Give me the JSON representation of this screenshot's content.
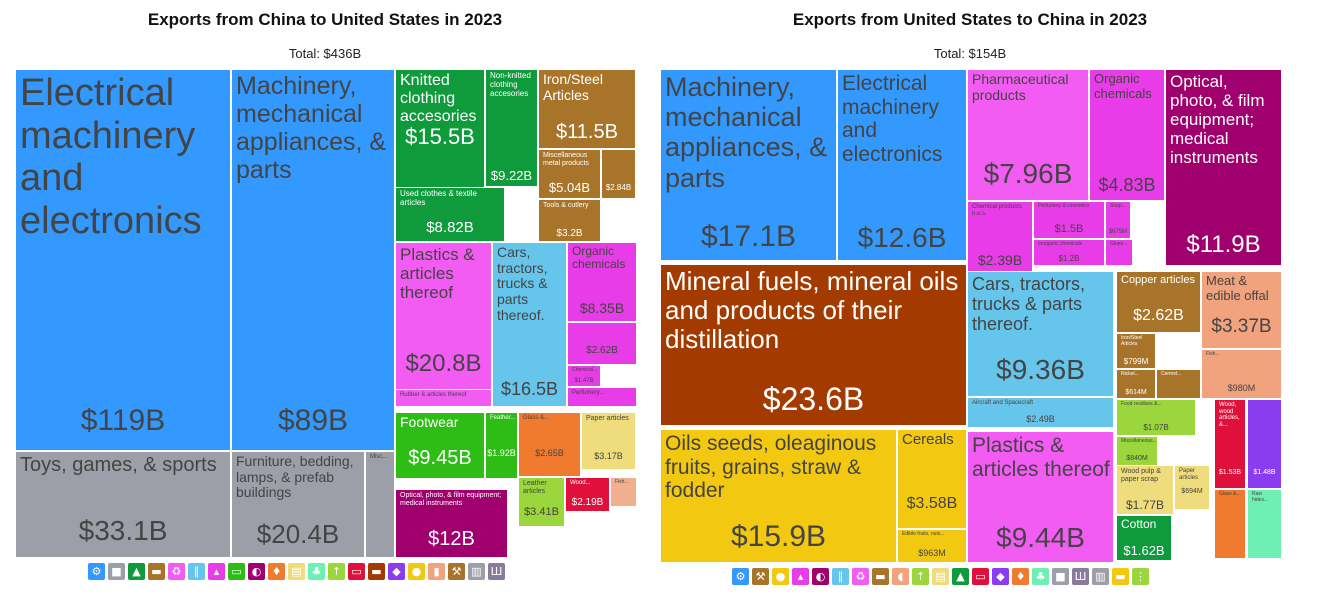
{
  "chart_data": [
    {
      "type": "treemap",
      "title": "Exports from China to United States in 2023",
      "subtitle": "Total: $436B",
      "tiles": [
        {
          "label": "Electrical machinery and electronics",
          "value": "$119B",
          "color": "#3399ff"
        },
        {
          "label": "Machinery, mechanical appliances, & parts",
          "value": "$89B",
          "color": "#3399ff"
        },
        {
          "label": "Toys, games, & sports",
          "value": "$33.1B",
          "color": "#9c9fa8"
        },
        {
          "label": "Furniture, bedding, lamps, & prefab buildings",
          "value": "$20.4B",
          "color": "#9c9fa8"
        },
        {
          "label": "Misc...",
          "value": "",
          "color": "#9c9fa8"
        },
        {
          "label": "Knitted clothing accesories",
          "value": "$15.5B",
          "color": "#0f9b3c"
        },
        {
          "label": "Non-knitted clothing accesories",
          "value": "$9.22B",
          "color": "#0f9b3c"
        },
        {
          "label": "Used clothes & textile articles",
          "value": "$8.82B",
          "color": "#0f9b3c"
        },
        {
          "label": "Iron/Steel Articles",
          "value": "$11.5B",
          "color": "#a8742a"
        },
        {
          "label": "Miscellaneous metal products",
          "value": "$5.04B",
          "color": "#a8742a"
        },
        {
          "label": "",
          "value": "$2.84B",
          "color": "#a8742a"
        },
        {
          "label": "Tools & cutlery",
          "value": "$3.2B",
          "color": "#a8742a"
        },
        {
          "label": "Plastics & articles thereof",
          "value": "$20.8B",
          "color": "#f25cf2"
        },
        {
          "label": "Rubber & articles thereof",
          "value": "",
          "color": "#f25cf2"
        },
        {
          "label": "Cars, tractors, trucks & parts thereof.",
          "value": "$16.5B",
          "color": "#66c5eb"
        },
        {
          "label": "Organic chemicals",
          "value": "$8.35B",
          "color": "#e83ce8"
        },
        {
          "label": "",
          "value": "$2.62B",
          "color": "#e83ce8"
        },
        {
          "label": "Chemical...",
          "value": "$1.47B",
          "color": "#e83ce8"
        },
        {
          "label": "Perfumery...",
          "value": "",
          "color": "#e83ce8"
        },
        {
          "label": "Footwear",
          "value": "$9.45B",
          "color": "#2dbd14"
        },
        {
          "label": "Feather...",
          "value": "$1.92B",
          "color": "#2dbd14"
        },
        {
          "label": "Glass &...",
          "value": "$2.65B",
          "color": "#f07a2e"
        },
        {
          "label": "Paper articles",
          "value": "$3.17B",
          "color": "#efdc7c"
        },
        {
          "label": "Leather articles",
          "value": "$3.41B",
          "color": "#9ad63c"
        },
        {
          "label": "Wood...",
          "value": "$2.19B",
          "color": "#e0103d"
        },
        {
          "label": "Fish...",
          "value": "",
          "color": "#efb08d"
        },
        {
          "label": "Optical, photo, & film equipment; medical instruments",
          "value": "$12B",
          "color": "#a0006e"
        }
      ],
      "legend_icons": [
        "gear-icon",
        "cube-icon",
        "shirt-icon",
        "anvil-icon",
        "recycle-icon",
        "road-icon",
        "flask-icon",
        "car-icon",
        "gauge-icon",
        "fire-icon",
        "paper-icon",
        "leaf-icon",
        "wheat-icon",
        "bill-icon",
        "shoe-icon",
        "diamond-icon",
        "fruit-icon",
        "bottle-icon",
        "hammer-icon",
        "furniture-icon",
        "bench-icon"
      ]
    },
    {
      "type": "treemap",
      "title": "Exports from United States to China in 2023",
      "subtitle": "Total: $154B",
      "tiles": [
        {
          "label": "Machinery, mechanical appliances, & parts",
          "value": "$17.1B",
          "color": "#3399ff"
        },
        {
          "label": "Electrical machinery and electronics",
          "value": "$12.6B",
          "color": "#3399ff"
        },
        {
          "label": "Mineral fuels, mineral oils and products of their distillation",
          "value": "$23.6B",
          "color": "#a33a00"
        },
        {
          "label": "Oils seeds, oleaginous fruits, grains, straw & fodder",
          "value": "$15.9B",
          "color": "#f2c811"
        },
        {
          "label": "Cereals",
          "value": "$3.58B",
          "color": "#f2c811"
        },
        {
          "label": "Edible fruits, nuts...",
          "value": "$963M",
          "color": "#f2c811"
        },
        {
          "label": "Pharmaceutical products",
          "value": "$7.96B",
          "color": "#f25cf2"
        },
        {
          "label": "Organic chemicals",
          "value": "$4.83B",
          "color": "#e83ce8"
        },
        {
          "label": "Chemical products n.e.s.",
          "value": "$2.39B",
          "color": "#e83ce8"
        },
        {
          "label": "Perfumery & cosmetics",
          "value": "$1.5B",
          "color": "#e83ce8"
        },
        {
          "label": "Soap...",
          "value": "$675M",
          "color": "#e83ce8"
        },
        {
          "label": "Inorganic chemicals",
          "value": "$1.2B",
          "color": "#e83ce8"
        },
        {
          "label": "Glues...",
          "value": "",
          "color": "#e83ce8"
        },
        {
          "label": "Optical, photo, & film equipment; medical instruments",
          "value": "$11.9B",
          "color": "#a0006e"
        },
        {
          "label": "Cars, tractors, trucks & parts thereof.",
          "value": "$9.36B",
          "color": "#66c5eb"
        },
        {
          "label": "Aircraft and Spacecraft",
          "value": "$2.49B",
          "color": "#66c5eb"
        },
        {
          "label": "Plastics & articles thereof",
          "value": "$9.44B",
          "color": "#f25cf2"
        },
        {
          "label": "Copper articles",
          "value": "$2.62B",
          "color": "#a8742a"
        },
        {
          "label": "Iron/Steel Articles",
          "value": "$799M",
          "color": "#a8742a"
        },
        {
          "label": "Nickel...",
          "value": "$614M",
          "color": "#a8742a"
        },
        {
          "label": "Cermet...",
          "value": "",
          "color": "#a8742a"
        },
        {
          "label": "Meat & edible offal",
          "value": "$3.37B",
          "color": "#f0a37c"
        },
        {
          "label": "Fish...",
          "value": "$980M",
          "color": "#f0a37c"
        },
        {
          "label": "Food residues &...",
          "value": "$1.07B",
          "color": "#9ad63c"
        },
        {
          "label": "Miscellaneous...",
          "value": "$840M",
          "color": "#9ad63c"
        },
        {
          "label": "Wood pulp & paper scrap",
          "value": "$1.77B",
          "color": "#efdc7c"
        },
        {
          "label": "Paper articles",
          "value": "$694M",
          "color": "#efdc7c"
        },
        {
          "label": "Cotton",
          "value": "$1.62B",
          "color": "#0f9b3c"
        },
        {
          "label": "Wood, wood articles, &...",
          "value": "$1.53B",
          "color": "#e0103d"
        },
        {
          "label": "",
          "value": "$1.48B",
          "color": "#8c3cf0"
        },
        {
          "label": "Glass &...",
          "value": "",
          "color": "#f07a2e"
        },
        {
          "label": "Raw hides...",
          "value": "",
          "color": "#6ef0b4"
        }
      ],
      "legend_icons": [
        "gear-icon",
        "hammer-icon",
        "fruit-icon",
        "flask-icon",
        "gauge-icon",
        "road-icon",
        "recycle-icon",
        "anvil-icon",
        "meat-icon",
        "wheat-icon",
        "paper-icon",
        "shirt-icon",
        "bill-icon",
        "diamond-icon",
        "fire-icon",
        "leaf-icon",
        "cube-icon",
        "bench-icon",
        "furniture-icon",
        "shoe-icon",
        "grain-icon"
      ]
    }
  ]
}
